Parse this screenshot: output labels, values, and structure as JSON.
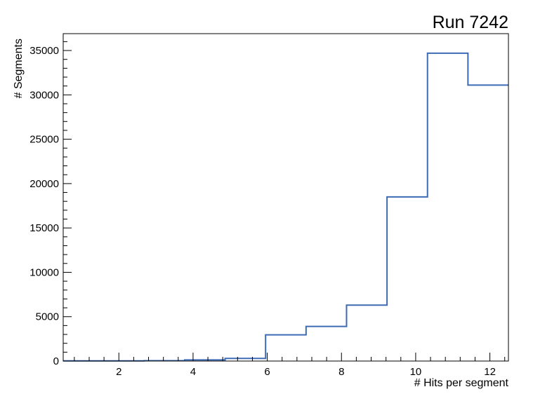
{
  "chart_data": {
    "type": "bar",
    "style": "root-histogram-step-outline",
    "title": "Run 7242",
    "xlabel": "# Hits per segment",
    "ylabel": "# Segments",
    "xlim": [
      0.5,
      12.5
    ],
    "ylim": [
      0,
      36900
    ],
    "x_ticks": [
      2,
      4,
      6,
      8,
      10,
      12
    ],
    "y_ticks": [
      0,
      5000,
      10000,
      15000,
      20000,
      25000,
      30000,
      35000
    ],
    "bin_edges": [
      0.5,
      1.5909,
      2.6818,
      3.7727,
      4.8636,
      5.9545,
      7.0455,
      8.1364,
      9.2273,
      10.3182,
      11.4091,
      12.5
    ],
    "counts": [
      15,
      20,
      40,
      130,
      300,
      2950,
      3900,
      6300,
      18500,
      34700,
      31100
    ],
    "line_color": "#3d6bb4",
    "frame_color": "#000000",
    "background": "#ffffff",
    "grid": false,
    "legend": "none"
  }
}
